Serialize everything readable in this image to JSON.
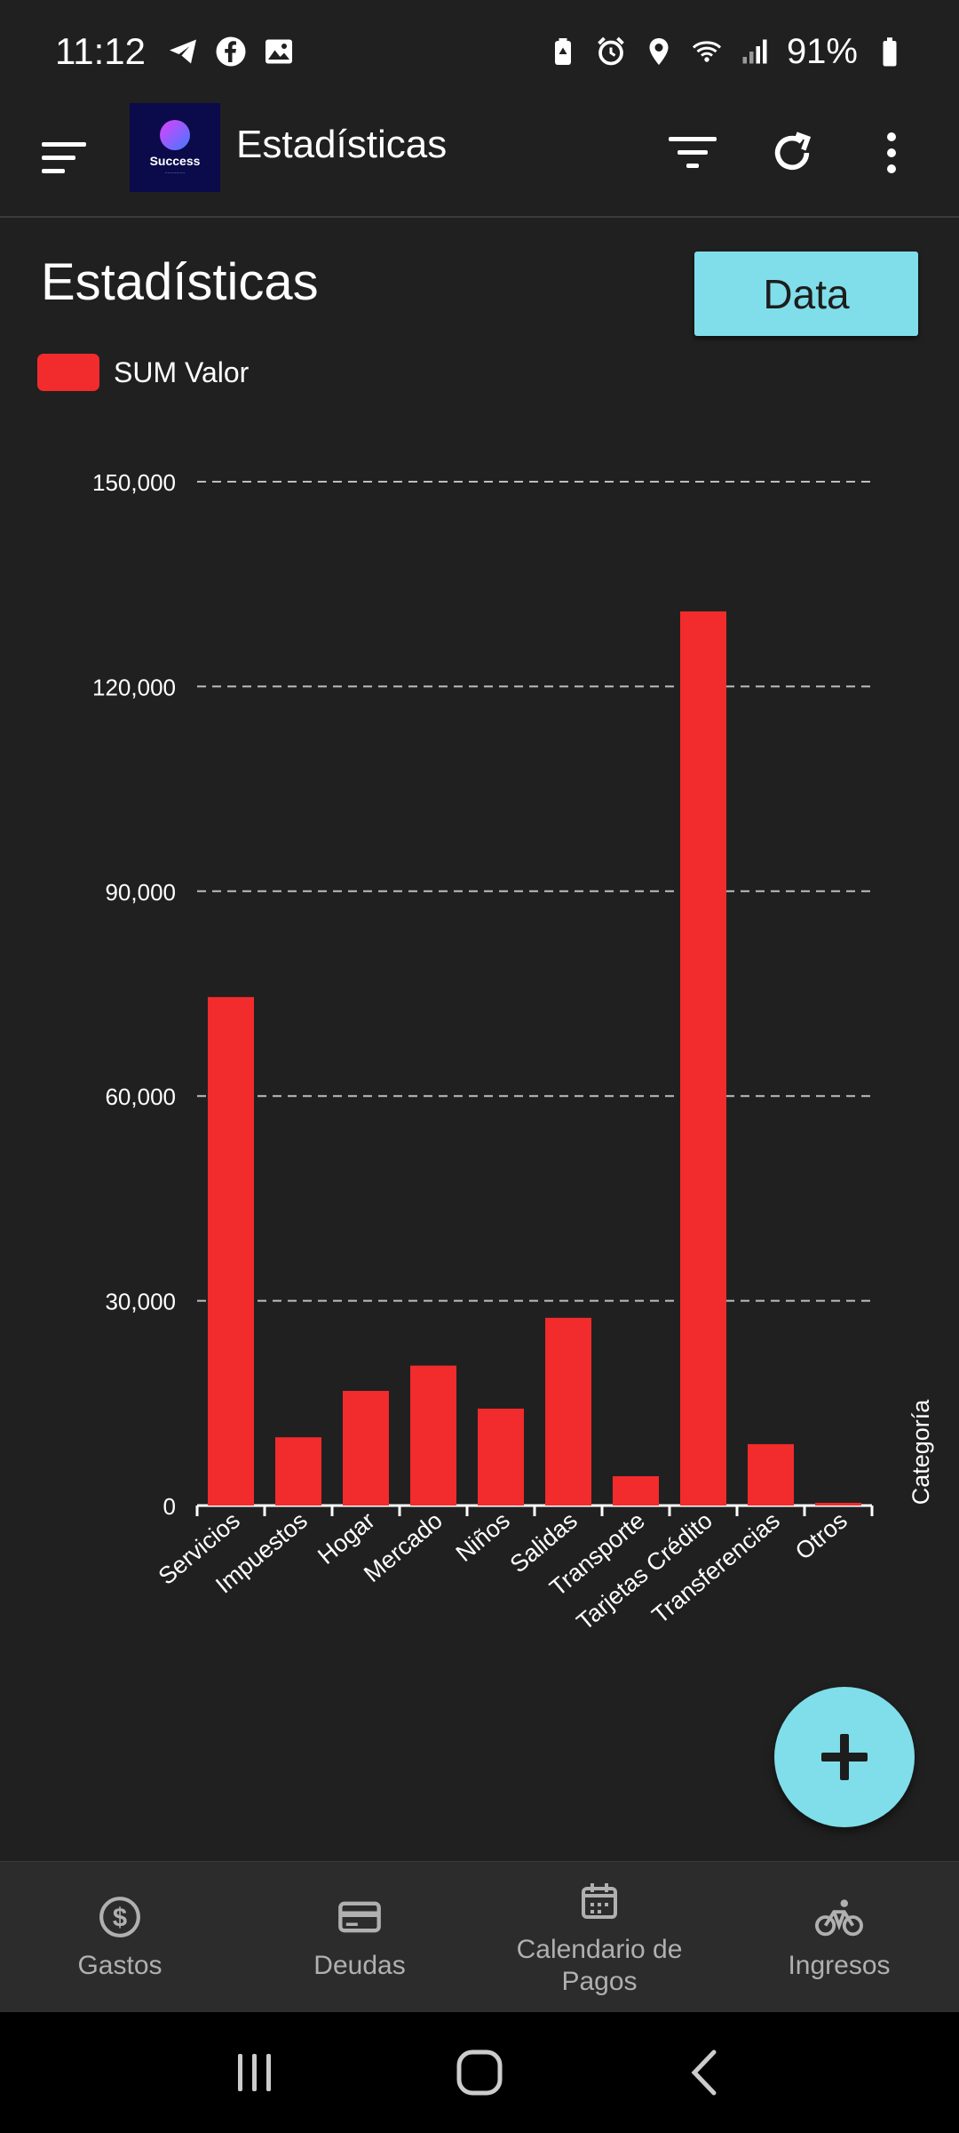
{
  "status_bar": {
    "time": "11:12",
    "battery": "91%"
  },
  "app_bar": {
    "title": "Estadísticas"
  },
  "page": {
    "heading": "Estadísticas",
    "data_button": "Data"
  },
  "colors": {
    "bar": "#f22b2d",
    "accent": "#80deea",
    "background": "#202020"
  },
  "chart_data": {
    "type": "bar",
    "legend": "SUM Valor",
    "xlabel": "Categoría",
    "ylabel": "",
    "ylim": [
      0,
      150000
    ],
    "yticks": [
      0,
      30000,
      60000,
      90000,
      120000,
      150000
    ],
    "ytick_labels": [
      "0",
      "30,000",
      "60,000",
      "90,000",
      "120,000",
      "150,000"
    ],
    "grid": true,
    "categories": [
      "Servicios",
      "Impuestos",
      "Hogar",
      "Mercado",
      "Niños",
      "Salidas",
      "Transporte",
      "Tarjetas Crédito",
      "Transferencias",
      "Otros"
    ],
    "series": [
      {
        "name": "SUM Valor",
        "values": [
          74500,
          10000,
          16800,
          20500,
          14200,
          27500,
          4300,
          131000,
          9000,
          400
        ]
      }
    ]
  },
  "bottom_nav": {
    "items": [
      {
        "label": "Gastos",
        "icon": "dollar-circle-icon"
      },
      {
        "label": "Deudas",
        "icon": "credit-card-icon"
      },
      {
        "label": "Calendario de Pagos",
        "icon": "calendar-icon"
      },
      {
        "label": "Ingresos",
        "icon": "bike-icon"
      }
    ]
  }
}
